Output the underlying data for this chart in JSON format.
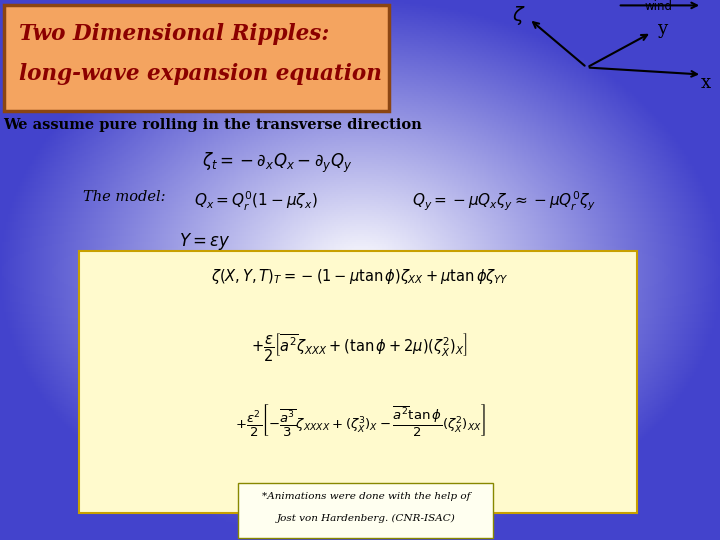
{
  "title_line1": "Two Dimensional Ripples:",
  "title_line2": "long-wave expansion equation",
  "title_bg_color": "#F4A460",
  "title_border_color": "#8B4513",
  "title_text_color": "#8B0000",
  "subtitle": "We assume pure rolling in the transverse direction",
  "model_label": "The model:",
  "box_bg_color": "#FFFACD",
  "box_border_color": "#C8A000",
  "footnote_line1": "*Animations were done with the help of",
  "footnote_line2": "Jost von Hardenberg. (CNR-ISAC)",
  "footnote_bg": "#FFFFF0",
  "footnote_border": "#888800",
  "axis_label_wind": "wind",
  "axis_label_y": "y",
  "axis_label_x": "x"
}
